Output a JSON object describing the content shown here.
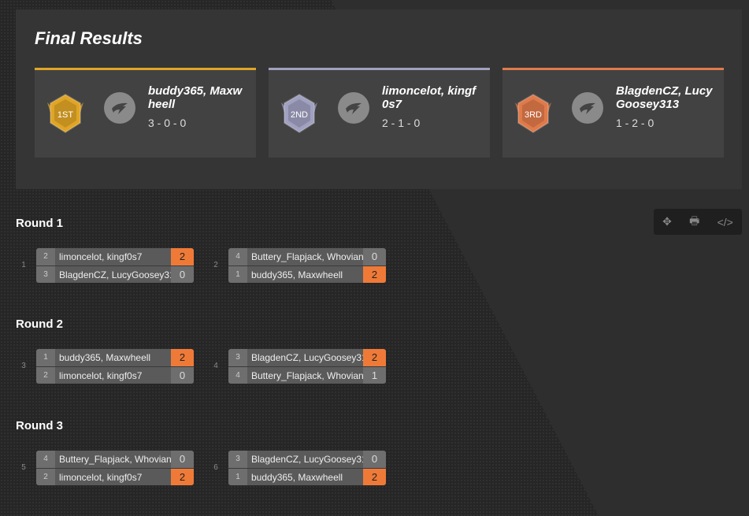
{
  "results": {
    "title": "Final Results",
    "places": [
      {
        "medal": "1ST",
        "color": "#e0a526",
        "names": "buddy365, Maxwheell",
        "record": "3 - 0 - 0"
      },
      {
        "medal": "2ND",
        "color": "#a0a0c0",
        "names": "limoncelot, kingf0s7",
        "record": "2 - 1 - 0"
      },
      {
        "medal": "3RD",
        "color": "#e07a4a",
        "names": "BlagdenCZ, LucyGoosey313",
        "record": "1 - 2 - 0"
      }
    ]
  },
  "toolbar": {
    "icons": [
      "move-icon",
      "print-icon",
      "code-icon"
    ]
  },
  "rounds": [
    {
      "label": "Round 1",
      "matches": [
        {
          "number": "1",
          "teams": [
            {
              "seed": "2",
              "name": "limoncelot, kingf0s7",
              "score": "2",
              "win": true
            },
            {
              "seed": "3",
              "name": "BlagdenCZ, LucyGoosey313",
              "score": "0",
              "win": false
            }
          ]
        },
        {
          "number": "2",
          "teams": [
            {
              "seed": "4",
              "name": "Buttery_Flapjack, Whovian",
              "score": "0",
              "win": false
            },
            {
              "seed": "1",
              "name": "buddy365, Maxwheell",
              "score": "2",
              "win": true
            }
          ]
        }
      ]
    },
    {
      "label": "Round 2",
      "matches": [
        {
          "number": "3",
          "teams": [
            {
              "seed": "1",
              "name": "buddy365, Maxwheell",
              "score": "2",
              "win": true
            },
            {
              "seed": "2",
              "name": "limoncelot, kingf0s7",
              "score": "0",
              "win": false
            }
          ]
        },
        {
          "number": "4",
          "teams": [
            {
              "seed": "3",
              "name": "BlagdenCZ, LucyGoosey313",
              "score": "2",
              "win": true
            },
            {
              "seed": "4",
              "name": "Buttery_Flapjack, Whovian",
              "score": "1",
              "win": false
            }
          ]
        }
      ]
    },
    {
      "label": "Round 3",
      "matches": [
        {
          "number": "5",
          "teams": [
            {
              "seed": "4",
              "name": "Buttery_Flapjack, Whovian",
              "score": "0",
              "win": false
            },
            {
              "seed": "2",
              "name": "limoncelot, kingf0s7",
              "score": "2",
              "win": true
            }
          ]
        },
        {
          "number": "6",
          "teams": [
            {
              "seed": "3",
              "name": "BlagdenCZ, LucyGoosey313",
              "score": "0",
              "win": false
            },
            {
              "seed": "1",
              "name": "buddy365, Maxwheell",
              "score": "2",
              "win": true
            }
          ]
        }
      ]
    }
  ]
}
